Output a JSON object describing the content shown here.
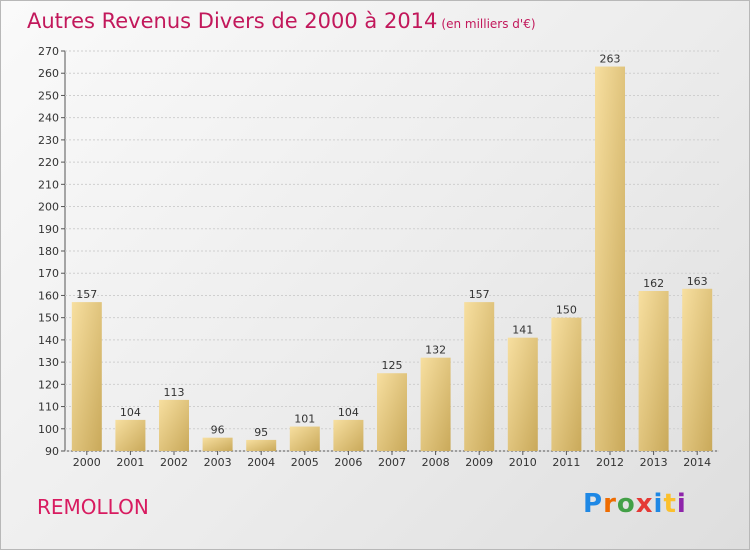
{
  "chart_data": {
    "type": "bar",
    "title": "Autres Revenus Divers de 2000 à 2014",
    "subtitle": "(en milliers d'€)",
    "categories": [
      "2000",
      "2001",
      "2002",
      "2003",
      "2004",
      "2005",
      "2006",
      "2007",
      "2008",
      "2009",
      "2010",
      "2011",
      "2012",
      "2013",
      "2014"
    ],
    "values": [
      157,
      104,
      113,
      96,
      95,
      101,
      104,
      125,
      132,
      157,
      141,
      150,
      263,
      162,
      163
    ],
    "yticks": [
      "90",
      "100",
      "110",
      "120",
      "130",
      "140",
      "150",
      "160",
      "170",
      "180",
      "190",
      "200",
      "210",
      "220",
      "230",
      "240",
      "250",
      "260",
      "270"
    ],
    "ylim": [
      90,
      270
    ],
    "grid": true,
    "bar_color": "#e6c77a"
  },
  "place_name": "REMOLLON",
  "logo": {
    "letters": [
      "P",
      "r",
      "o",
      "x",
      "i",
      "t",
      "i"
    ],
    "colors": [
      "#1e88e5",
      "#ef6c00",
      "#43a047",
      "#e53935",
      "#1e88e5",
      "#fbc02d",
      "#8e24aa"
    ]
  }
}
